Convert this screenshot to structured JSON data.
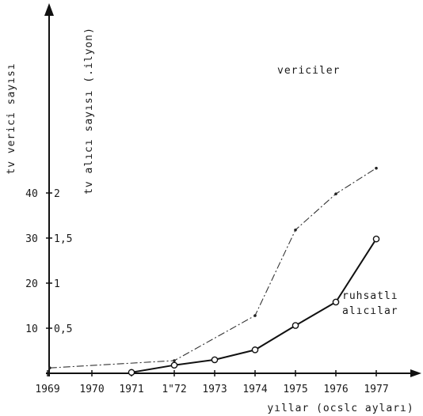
{
  "chart_data": {
    "type": "line",
    "x": [
      "1969",
      "1970",
      "1971",
      "1972",
      "1973",
      "1974",
      "1975",
      "1976",
      "1977"
    ],
    "x_tick_labels": [
      "1969",
      "1970",
      "1971",
      "1\"72",
      "1973",
      "1974",
      "1975",
      "1976",
      "1977"
    ],
    "xlabel": "yıllar (ocslc ayları)",
    "ylabel_left": "tv verici sayısı",
    "ylabel_right": "tv alıcı sayısı (.ilyon)",
    "y_left_ticks": [
      "10",
      "20",
      "30",
      "40"
    ],
    "y_right_ticks": [
      "0,5",
      "1",
      "1,5",
      "2"
    ],
    "ylim_left": [
      0,
      50
    ],
    "ylim_right": [
      0,
      2.5
    ],
    "grid": false,
    "series": [
      {
        "name": "vericiler",
        "axis": "left",
        "style": "dash-dot",
        "x": [
          1969.05,
          1972,
          1974,
          1975,
          1976,
          1977
        ],
        "values": [
          1.2,
          2.8,
          12.8,
          31.8,
          39.8,
          45.5
        ]
      },
      {
        "name": "ruhsatlı alıcılar",
        "label_lines": [
          "ruhsatlı",
          "alıcılar"
        ],
        "axis": "right",
        "style": "solid-circle",
        "x": [
          1971,
          1972,
          1973,
          1974,
          1975,
          1976,
          1977
        ],
        "values": [
          0.01,
          0.09,
          0.15,
          0.26,
          0.53,
          0.79,
          1.49
        ]
      }
    ]
  }
}
